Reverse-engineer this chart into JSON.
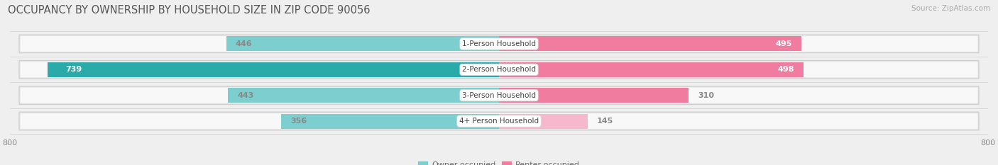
{
  "title": "OCCUPANCY BY OWNERSHIP BY HOUSEHOLD SIZE IN ZIP CODE 90056",
  "source": "Source: ZipAtlas.com",
  "categories": [
    "1-Person Household",
    "2-Person Household",
    "3-Person Household",
    "4+ Person Household"
  ],
  "owner_values": [
    446,
    739,
    443,
    356
  ],
  "renter_values": [
    495,
    498,
    310,
    145
  ],
  "owner_color_light": "#7dcfcf",
  "owner_color_dark": "#2aabaa",
  "renter_color_dark": "#f07ca0",
  "renter_color_light": "#f5b8cc",
  "background_color": "#efefef",
  "bar_bg_color": "#e0e0e0",
  "bar_inner_color": "#f8f8f8",
  "xlim": 800,
  "label_color_dark": "#888888",
  "label_color_white": "#ffffff",
  "title_fontsize": 10.5,
  "source_fontsize": 7.5,
  "bar_label_fontsize": 8,
  "legend_fontsize": 8,
  "category_fontsize": 7.5,
  "owner_label_white": [
    1
  ],
  "renter_label_white": [
    0,
    1
  ],
  "renter_colors_by_row": [
    "dark",
    "dark",
    "medium",
    "light"
  ]
}
